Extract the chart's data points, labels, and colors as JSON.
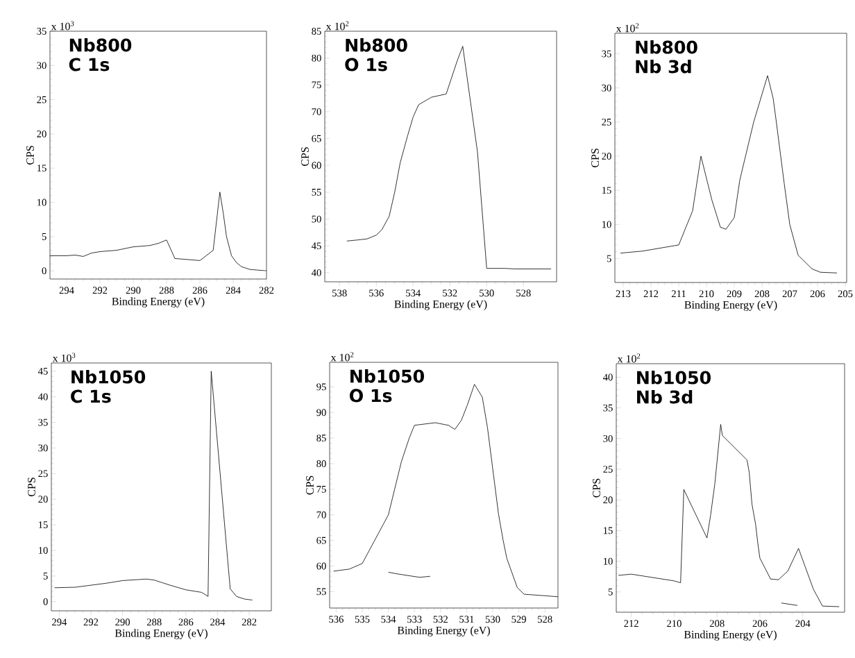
{
  "chart_data": [
    {
      "type": "line",
      "title": "Nb800",
      "subtitle": "C 1s",
      "xlabel": "Binding Energy (eV)",
      "ylabel": "CPS",
      "annotations": [
        "x 10$^{3}$"
      ],
      "xlim": [
        295,
        282
      ],
      "ylim": [
        -1.2,
        35
      ],
      "xticks": [
        294,
        292,
        290,
        288,
        286,
        284,
        282
      ],
      "yticks": [
        0,
        5,
        10,
        15,
        20,
        25,
        30,
        35
      ],
      "series": [
        {
          "color": "#000000",
          "x": [
            295,
            294,
            293.5,
            293,
            292.5,
            292,
            291,
            290,
            289.5,
            289,
            288.5,
            288,
            287.5,
            287,
            286,
            285.2,
            284.8,
            284.6,
            284.4,
            284.1,
            283.8,
            283.5,
            283,
            282.5,
            282
          ],
          "values": [
            2.2,
            2.2,
            2.3,
            2.1,
            2.6,
            2.8,
            3.0,
            3.5,
            3.6,
            3.7,
            4.0,
            4.5,
            1.8,
            1.7,
            1.5,
            3,
            11.5,
            8.5,
            5,
            2.2,
            1.2,
            0.6,
            0.2,
            0.1,
            0
          ]
        }
      ]
    },
    {
      "type": "line",
      "title": "Nb800",
      "subtitle": "O 1s",
      "xlabel": "Binding Energy (eV)",
      "ylabel": "CPS",
      "annotations": [
        "x 10$^{2}$"
      ],
      "xlim": [
        538.8,
        526.2
      ],
      "ylim": [
        38.3,
        85
      ],
      "xticks": [
        538,
        536,
        534,
        532,
        530,
        528
      ],
      "yticks": [
        40,
        45,
        50,
        55,
        60,
        65,
        70,
        75,
        80,
        85
      ],
      "series": [
        {
          "color": "#000000",
          "x": [
            537.6,
            537,
            536.5,
            536,
            535.7,
            535.3,
            535,
            534.7,
            534.3,
            534,
            533.7,
            533,
            532.2,
            531.6,
            531.3,
            530.5,
            530,
            529,
            528.5,
            526.5
          ],
          "values": [
            45.9,
            46.1,
            46.3,
            47,
            48,
            50.5,
            55,
            60.5,
            65.5,
            69,
            71.3,
            72.7,
            73.3,
            79.5,
            82.2,
            62.5,
            40.8,
            40.8,
            40.7,
            40.7
          ]
        }
      ]
    },
    {
      "type": "line",
      "title": "Nb800",
      "subtitle": "Nb 3d",
      "xlabel": "Binding Energy (eV)",
      "ylabel": "CPS",
      "annotations": [
        "x 10$^{2}$"
      ],
      "xlim": [
        213.3,
        204.95
      ],
      "ylim": [
        1.5,
        38
      ],
      "xticks": [
        213,
        212,
        211,
        210,
        209,
        208,
        207,
        206,
        205
      ],
      "yticks": [
        5,
        10,
        15,
        20,
        25,
        30,
        35
      ],
      "series": [
        {
          "color": "#000000",
          "x": [
            213.1,
            212.3,
            211,
            210.5,
            210.2,
            209.8,
            209.5,
            209.3,
            209,
            208.8,
            208.3,
            207.8,
            207.6,
            207.5,
            207.2,
            207,
            206.7,
            206.2,
            205.9,
            205.3
          ],
          "values": [
            5.8,
            6.1,
            7,
            12,
            20,
            13.5,
            9.6,
            9.3,
            11,
            16.5,
            25,
            31.8,
            28.5,
            25.5,
            16,
            10,
            5.5,
            3.5,
            3.0,
            2.9
          ]
        }
      ]
    },
    {
      "type": "line",
      "title": "Nb1050",
      "subtitle": "C 1s",
      "xlabel": "Binding Energy (eV)",
      "ylabel": "CPS",
      "annotations": [
        "x 10$^{3}$"
      ],
      "xlim": [
        294.5,
        280.6
      ],
      "ylim": [
        -1.8,
        46.6
      ],
      "xticks": [
        294,
        292,
        290,
        288,
        286,
        284,
        282
      ],
      "yticks": [
        0,
        5,
        10,
        15,
        20,
        25,
        30,
        35,
        40,
        45
      ],
      "series": [
        {
          "color": "#000000",
          "x": [
            294.3,
            293,
            292,
            291,
            290,
            289,
            288.5,
            288,
            287.5,
            287,
            286,
            285,
            284.6,
            284.4,
            283.2,
            282.8,
            282.3,
            281.8
          ],
          "values": [
            2.7,
            2.8,
            3.2,
            3.6,
            4.1,
            4.3,
            4.4,
            4.2,
            3.7,
            3.2,
            2.3,
            1.8,
            1.0,
            45,
            2.5,
            1.0,
            0.5,
            0.3
          ]
        }
      ]
    },
    {
      "type": "line",
      "title": "Nb1050",
      "subtitle": "O 1s",
      "xlabel": "Binding Energy (eV)",
      "ylabel": "CPS",
      "annotations": [
        "x 10$^{2}$"
      ],
      "xlim": [
        536.25,
        527.5
      ],
      "ylim": [
        51.8,
        99.8
      ],
      "xticks": [
        536,
        535,
        534,
        533,
        532,
        531,
        530,
        529,
        528
      ],
      "yticks": [
        55,
        60,
        65,
        70,
        75,
        80,
        85,
        90,
        95
      ],
      "series": [
        {
          "color": "#000000",
          "x": [
            536.1,
            535.5,
            535,
            534,
            533.5,
            533.2,
            533,
            532.2,
            531.7,
            531.45,
            531.2,
            530.97,
            530.7,
            530.4,
            530.2,
            529.78,
            529.6,
            529.46,
            529.06,
            528.8,
            528,
            527.5
          ],
          "values": [
            59,
            59.4,
            60.5,
            70,
            80.4,
            85,
            87.5,
            88,
            87.5,
            86.7,
            88.5,
            91.5,
            95.5,
            93,
            87,
            70.2,
            65,
            61.5,
            55.8,
            54.5,
            54.2,
            54
          ]
        },
        {
          "color": "#000000",
          "x": [
            534,
            533.7,
            532.8,
            532.4
          ],
          "values": [
            58.8,
            58.5,
            57.8,
            58
          ]
        }
      ]
    },
    {
      "type": "line",
      "title": "Nb1050",
      "subtitle": "Nb 3d",
      "xlabel": "Binding Energy (eV)",
      "ylabel": "CPS",
      "annotations": [
        "x 10$^{2}$"
      ],
      "xlim": [
        212.7,
        202.05
      ],
      "ylim": [
        1.7,
        42.2
      ],
      "xticks": [
        212,
        210,
        208,
        206,
        204
      ],
      "yticks": [
        5,
        10,
        15,
        20,
        25,
        30,
        35,
        40
      ],
      "series": [
        {
          "color": "#000000",
          "x": [
            212.6,
            212,
            210,
            209.7,
            209.55,
            208.47,
            208.3,
            208.1,
            207.83,
            207.75,
            206.6,
            206.5,
            206.37,
            206.2,
            206.1,
            206,
            205.5,
            205.13,
            204.7,
            204.2,
            203.5,
            203.08,
            202.3
          ],
          "values": [
            7.7,
            7.9,
            6.8,
            6.5,
            21.7,
            13.8,
            17.5,
            22.7,
            32.3,
            30.5,
            26.5,
            24.5,
            19.3,
            16,
            13,
            10.5,
            7.1,
            7.0,
            8.4,
            12.1,
            5.4,
            2.7,
            2.6
          ]
        },
        {
          "color": "#000000",
          "x": [
            205,
            204.25
          ],
          "values": [
            3.2,
            2.8
          ]
        }
      ]
    }
  ]
}
